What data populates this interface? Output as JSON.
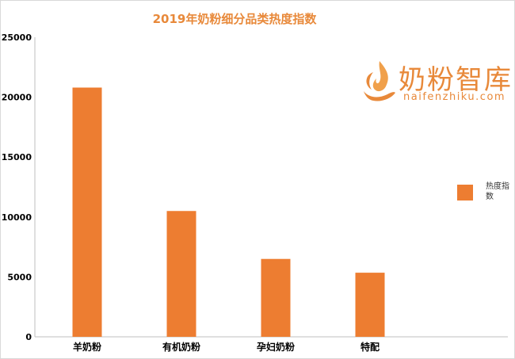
{
  "chart_data": {
    "type": "bar",
    "title": "2019年奶粉细分品类热度指数",
    "categories": [
      "羊奶粉",
      "有机奶粉",
      "孕妇奶粉",
      "特配"
    ],
    "series": [
      {
        "name": "热度指数",
        "values": [
          20800,
          10500,
          6500,
          5350
        ]
      }
    ],
    "ylim": [
      0,
      25000
    ],
    "yticks": [
      0,
      5000,
      10000,
      15000,
      20000,
      25000
    ],
    "xlabel": "",
    "ylabel": "",
    "grid": false,
    "legend_position": "right",
    "bar_color": "#ed7d31",
    "title_color": "#e8893a"
  },
  "logo": {
    "name_cn": "奶粉智库",
    "domain": "naifenzhiku.com",
    "icon": "flame-hand-logo-icon",
    "color": "#e8893a"
  }
}
